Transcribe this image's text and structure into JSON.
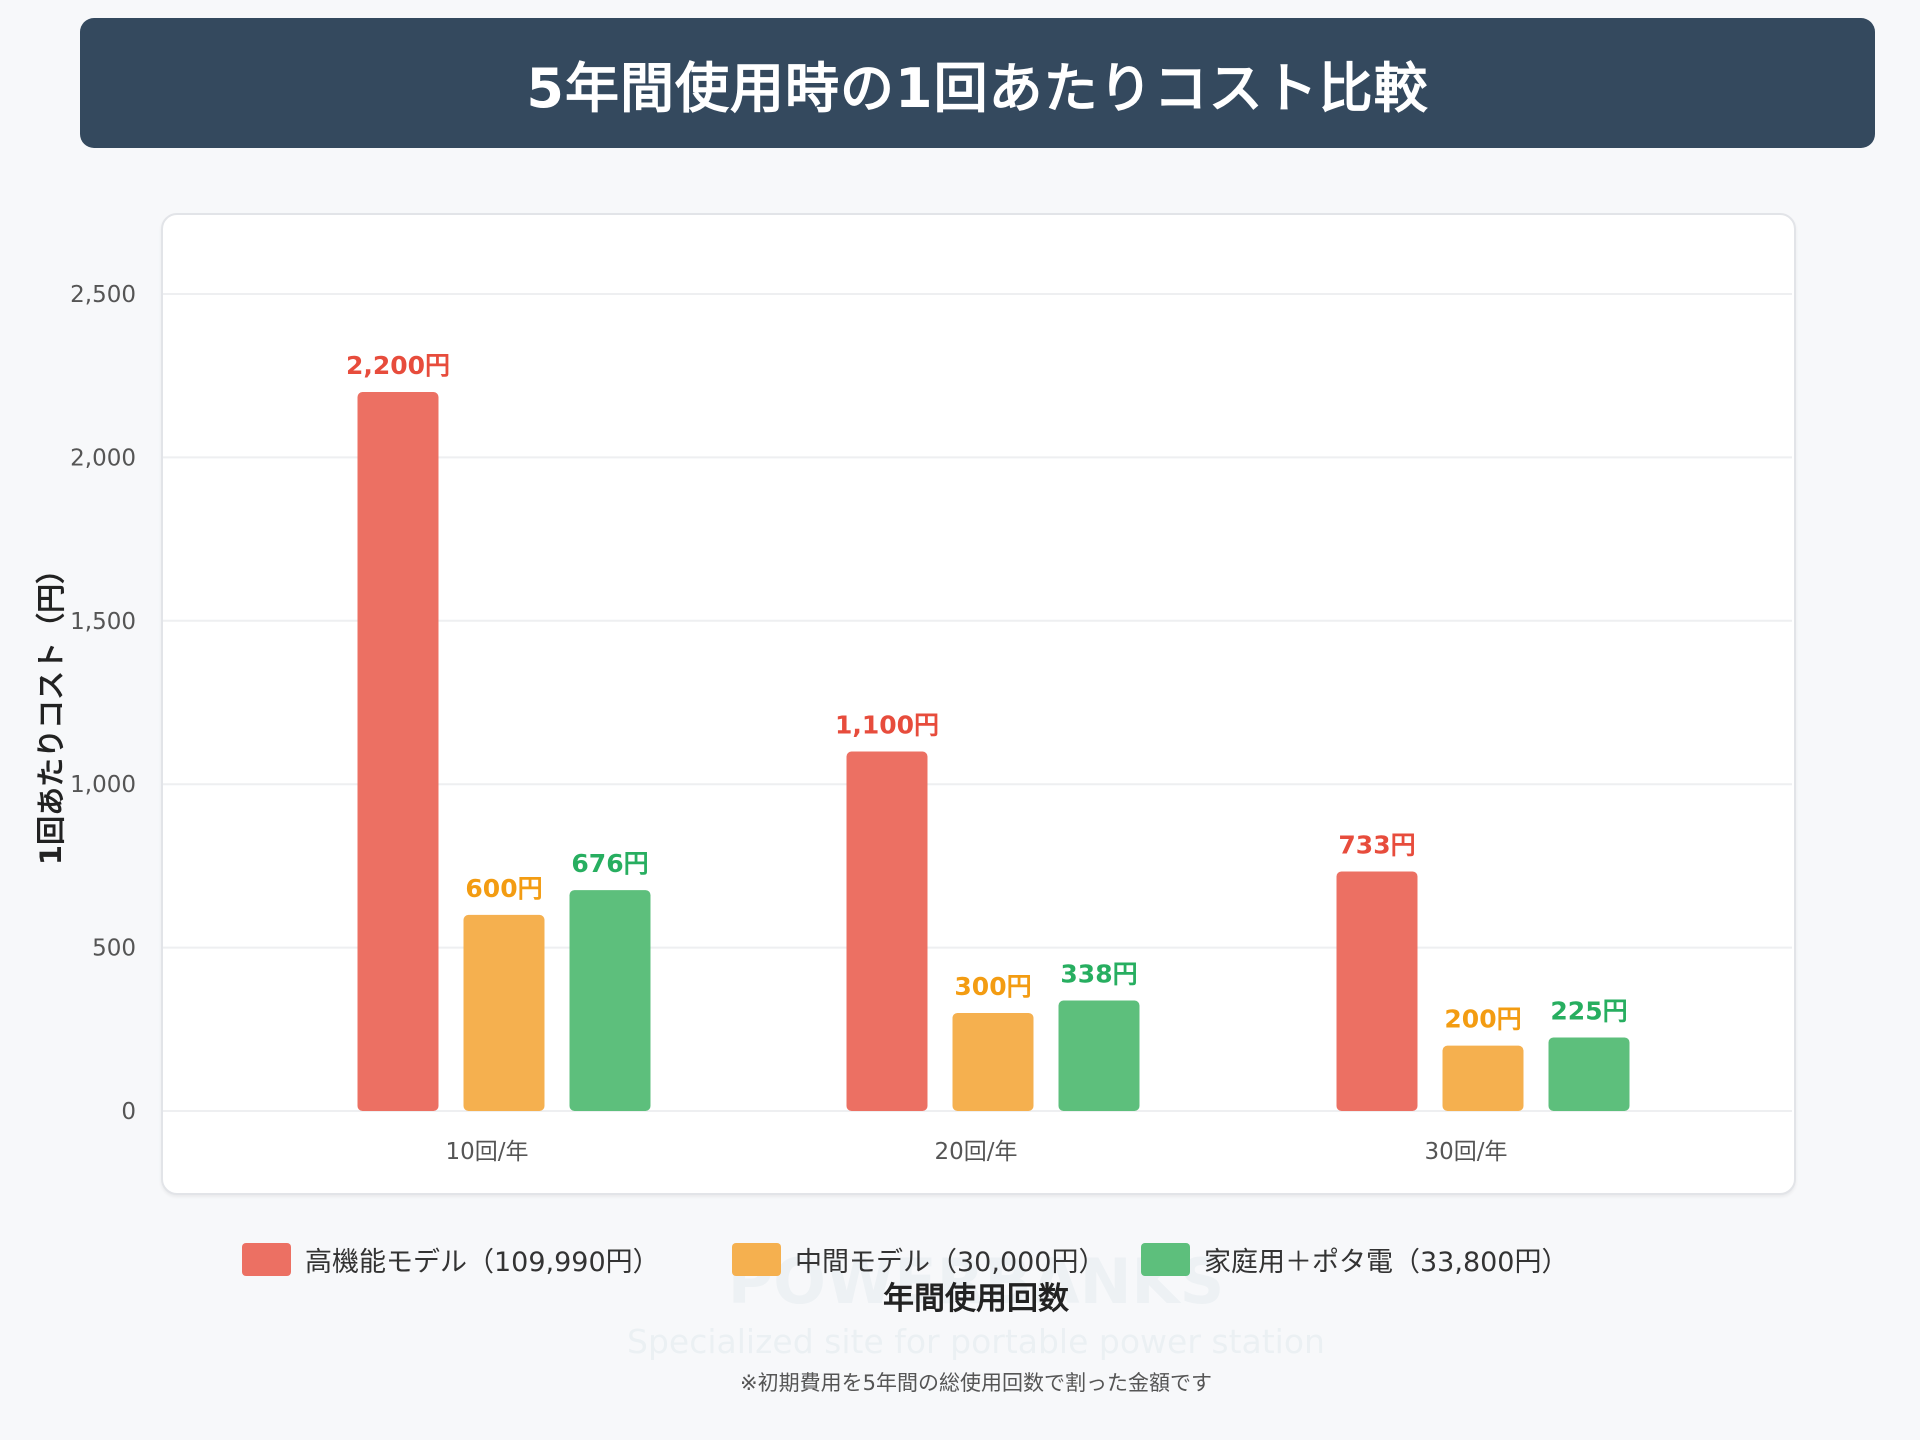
{
  "header": {
    "title": "5年間使用時の1回あたりコスト比較"
  },
  "watermark": {
    "brand": "POWERBANKS",
    "tagline": "Specialized site for portable power station"
  },
  "footnote": "※初期費用を5年間の総使用回数で割った金額です",
  "chart_data": {
    "type": "bar",
    "title": "5年間使用時の1回あたりコスト比較",
    "xlabel": "年間使用回数",
    "ylabel": "1回あたりコスト（円）",
    "ylim": [
      0,
      2500
    ],
    "yticks": [
      "0",
      "500",
      "1,000",
      "1,500",
      "2,000",
      "2,500"
    ],
    "ytick_values": [
      0,
      500,
      1000,
      1500,
      2000,
      2500
    ],
    "grid": true,
    "legend_position": "bottom",
    "categories": [
      "10回/年",
      "20回/年",
      "30回/年"
    ],
    "series": [
      {
        "name": "高機能モデル（109,990円）",
        "values": [
          2200,
          1100,
          733
        ],
        "labels": [
          "2,200円",
          "1,100円",
          "733円"
        ],
        "color": "#ec7063",
        "label_color": "#e74c3c"
      },
      {
        "name": "中間モデル（30,000円）",
        "values": [
          600,
          300,
          200
        ],
        "labels": [
          "600円",
          "300円",
          "200円"
        ],
        "color": "#f5b04f",
        "label_color": "#f39c12"
      },
      {
        "name": "家庭用＋ポタ電（33,800円）",
        "values": [
          676,
          338,
          225
        ],
        "labels": [
          "676円",
          "338円",
          "225円"
        ],
        "color": "#5dbf7c",
        "label_color": "#27ae60"
      }
    ]
  }
}
